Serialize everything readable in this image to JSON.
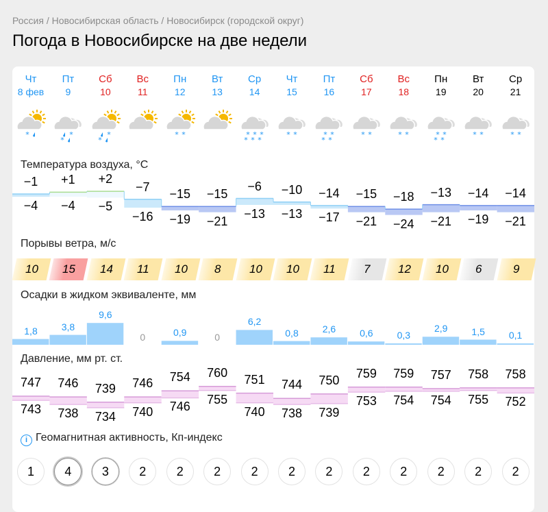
{
  "breadcrumbs": [
    "Россия",
    "Новосибирская область",
    "Новосибирск (городской округ)"
  ],
  "breadcrumb_sep": "/",
  "title": "Погода в Новосибирске на две недели",
  "colors": {
    "weekday": "#2196f3",
    "weekend": "#e02020",
    "future": "#000000"
  },
  "days": [
    {
      "name": "Чт",
      "date": "8 фев",
      "type": "weekday",
      "sun": true,
      "precip": [
        "snow rain"
      ]
    },
    {
      "name": "Пт",
      "date": "9",
      "type": "weekday",
      "sun": false,
      "precip": [
        "rain snow",
        "snow rain"
      ]
    },
    {
      "name": "Сб",
      "date": "10",
      "type": "weekend",
      "sun": true,
      "precip": [
        "rain snow",
        "snow rain"
      ]
    },
    {
      "name": "Вс",
      "date": "11",
      "type": "weekend",
      "sun": true,
      "precip": []
    },
    {
      "name": "Пн",
      "date": "12",
      "type": "weekday",
      "sun": true,
      "precip": [
        "snow snow"
      ]
    },
    {
      "name": "Вт",
      "date": "13",
      "type": "weekday",
      "sun": true,
      "precip": []
    },
    {
      "name": "Ср",
      "date": "14",
      "type": "weekday",
      "sun": false,
      "precip": [
        "snow snow snow",
        "snow snow snow"
      ]
    },
    {
      "name": "Чт",
      "date": "15",
      "type": "weekday",
      "sun": false,
      "precip": [
        "snow snow"
      ]
    },
    {
      "name": "Пт",
      "date": "16",
      "type": "weekday",
      "sun": false,
      "precip": [
        "snow snow",
        "snow snow"
      ]
    },
    {
      "name": "Сб",
      "date": "17",
      "type": "weekend",
      "sun": false,
      "precip": [
        "snow snow"
      ]
    },
    {
      "name": "Вс",
      "date": "18",
      "type": "weekend",
      "sun": false,
      "precip": [
        "snow snow"
      ]
    },
    {
      "name": "Пн",
      "date": "19",
      "type": "future",
      "sun": false,
      "precip": [
        "snow snow",
        "snow snow"
      ]
    },
    {
      "name": "Вт",
      "date": "20",
      "type": "future",
      "sun": false,
      "precip": [
        "snow snow"
      ]
    },
    {
      "name": "Ср",
      "date": "21",
      "type": "future",
      "sun": false,
      "precip": [
        "snow snow"
      ]
    }
  ],
  "temperature": {
    "label": "Температура воздуха, °C",
    "max": [
      "−1",
      "+1",
      "+2",
      "−7",
      "−15",
      "−15",
      "−6",
      "−10",
      "−14",
      "−15",
      "−18",
      "−13",
      "−14",
      "−14"
    ],
    "min": [
      "−4",
      "−4",
      "−5",
      "−16",
      "−19",
      "−21",
      "−13",
      "−13",
      "−17",
      "−21",
      "−24",
      "−21",
      "−19",
      "−21"
    ],
    "max_values": [
      -1,
      1,
      2,
      -7,
      -15,
      -15,
      -6,
      -10,
      -14,
      -15,
      -18,
      -13,
      -14,
      -14
    ],
    "min_values": [
      -4,
      -4,
      -5,
      -16,
      -19,
      -21,
      -13,
      -13,
      -17,
      -21,
      -24,
      -21,
      -19,
      -21
    ]
  },
  "wind": {
    "label": "Порывы ветра, м/с",
    "values": [
      "10",
      "15",
      "14",
      "11",
      "10",
      "8",
      "10",
      "10",
      "11",
      "7",
      "12",
      "10",
      "6",
      "9"
    ],
    "levels": [
      "moderate",
      "strong",
      "moderate",
      "moderate",
      "moderate",
      "moderate",
      "moderate",
      "moderate",
      "moderate",
      "weak",
      "moderate",
      "moderate",
      "weak",
      "moderate"
    ]
  },
  "precipitation": {
    "label": "Осадки в жидком эквиваленте, мм",
    "values": [
      "1,8",
      "3,8",
      "9,6",
      "0",
      "0,9",
      "0",
      "6,2",
      "0,8",
      "2,6",
      "0,6",
      "0,3",
      "2,9",
      "1,5",
      "0,1"
    ],
    "amounts": [
      1.8,
      3.8,
      9.6,
      0,
      0.9,
      0,
      6.2,
      0.8,
      2.6,
      0.6,
      0.3,
      2.9,
      1.5,
      0.1
    ]
  },
  "pressure": {
    "label": "Давление, мм рт. ст.",
    "max": [
      "747",
      "746",
      "739",
      "746",
      "754",
      "760",
      "751",
      "744",
      "750",
      "759",
      "759",
      "757",
      "758",
      "758"
    ],
    "min": [
      "743",
      "738",
      "734",
      "740",
      "746",
      "755",
      "740",
      "738",
      "739",
      "753",
      "754",
      "754",
      "755",
      "752"
    ]
  },
  "geomagnetic": {
    "label": "Геомагнитная активность, Кп-индекс",
    "info_icon": "i",
    "values": [
      "1",
      "4",
      "3",
      "2",
      "2",
      "2",
      "2",
      "2",
      "2",
      "2",
      "2",
      "2",
      "2",
      "2"
    ]
  }
}
